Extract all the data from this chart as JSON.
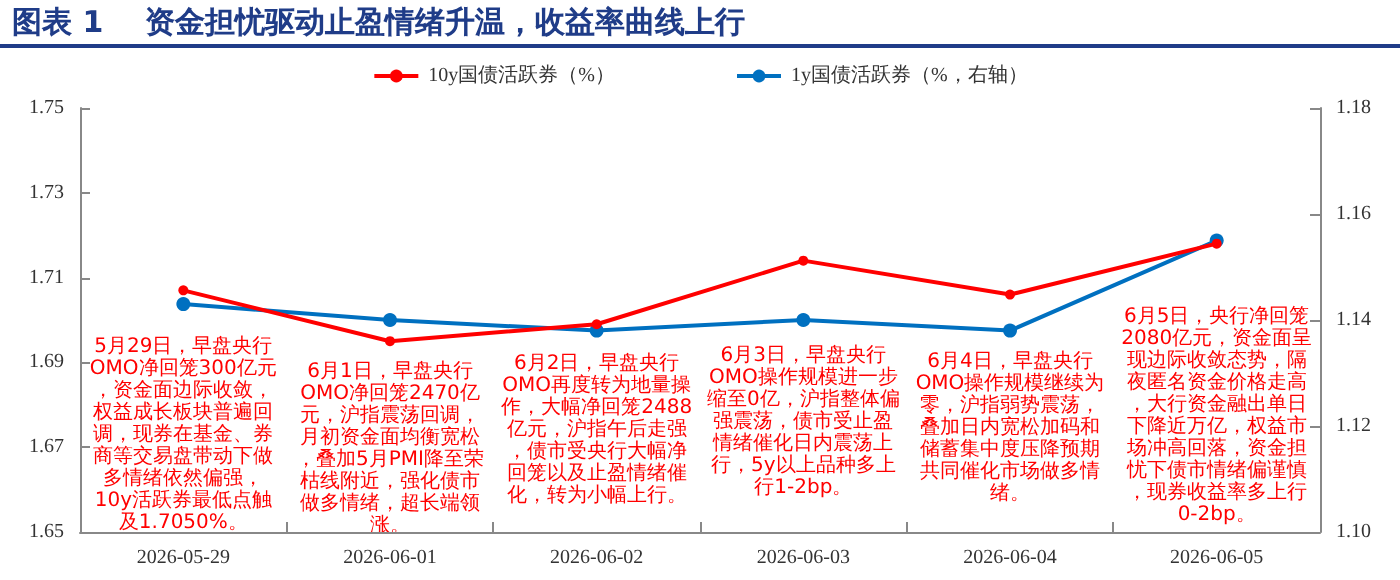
{
  "chart_data": {
    "type": "line",
    "title": "图表 1    资金担忧驱动止盈情绪升温，收益率曲线上行",
    "categories": [
      "2026-05-29",
      "2026-06-01",
      "2026-06-02",
      "2026-06-03",
      "2026-06-04",
      "2026-06-05"
    ],
    "series": [
      {
        "name": "10y国债活跃券（%）",
        "color": "#ff0000",
        "values": [
          1.707,
          1.695,
          1.699,
          1.714,
          1.706,
          1.718
        ]
      },
      {
        "name": "1y国债活跃券（%，右轴）",
        "color": "#0070c0",
        "axis": "y2",
        "values": [
          1.143,
          1.14,
          1.138,
          1.14,
          1.138,
          1.155
        ]
      }
    ],
    "ylim": [
      1.65,
      1.75
    ],
    "yticks": [
      1.65,
      1.67,
      1.69,
      1.71,
      1.73,
      1.75
    ],
    "y2lim": [
      1.1,
      1.18
    ],
    "y2ticks": [
      {
        "value": 1.1,
        "label": "1.10"
      },
      1.12,
      1.14,
      1.16,
      1.18
    ],
    "grid": false,
    "legend": "top",
    "marker": "circle",
    "line_style": "solid",
    "annotations": [
      "5月29日，早盘央行OMO净回笼300亿元，资金面边际收敛，权益成长板块普遍回调，现券在基金、券商等交易盘带动下做多情绪依然偏强，10y活跃券最低点触及1.7050%。",
      "6月1日，早盘央行OMO净回笼2470亿元，沪指震荡回调，月初资金面均衡宽松，叠加5月PMI降至荣枯线附近，强化债市做多情绪，超长端领涨。",
      "6月2日，早盘央行OMO再度转为地量操作，大幅净回笼2488亿元，沪指午后走强，债市受央行大幅净回笼以及止盈情绪催化，转为小幅上行。",
      "6月3日，早盘央行OMO操作规模进一步缩至0亿，沪指整体偏强震荡，债市受止盈情绪催化日内震荡上行，5y以上品种多上行1-2bp。",
      "6月4日，早盘央行OMO操作规模继续为零，沪指弱势震荡，叠加日内宽松加码和储蓄集中度压降预期共同催化市场做多情绪。",
      "6月5日，央行净回笼2080亿元，资金面呈现边际收敛态势，隔夜匿名资金价格走高，大行资金融出单日下降近万亿，权益市场冲高回落，资金担忧下债市情绪偏谨慎，现券收益率多上行0-2bp。"
    ]
  }
}
